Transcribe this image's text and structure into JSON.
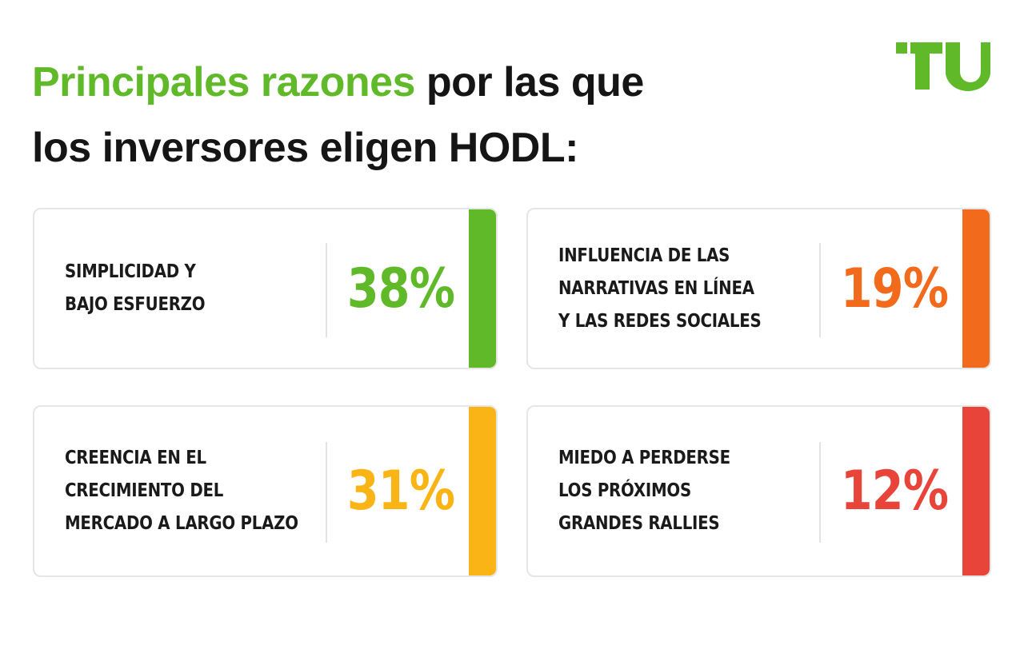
{
  "title": {
    "accent": "Principales razones",
    "rest_line1": " por las que",
    "line2": "los inversores eligen HODL:"
  },
  "logo": {
    "icon": "tu-logo-icon",
    "color": "#5fb928"
  },
  "cards": [
    {
      "label": "SIMPLICIDAD Y\nBAJO ESFUERZO",
      "value": "38%",
      "percent": 38,
      "color": "#5fb928"
    },
    {
      "label": "INFLUENCIA DE LAS\nNARRATIVAS EN LÍNEA\nY LAS REDES SOCIALES",
      "value": "19%",
      "percent": 19,
      "color": "#f26b1d"
    },
    {
      "label": "CREENCIA EN EL\nCRECIMIENTO DEL\nMERCADO A LARGO PLAZO",
      "value": "31%",
      "percent": 31,
      "color": "#fbb415"
    },
    {
      "label": "MIEDO A PERDERSE\nLOS PRÓXIMOS\nGRANDES RALLIES",
      "value": "12%",
      "percent": 12,
      "color": "#e8443a"
    }
  ]
}
